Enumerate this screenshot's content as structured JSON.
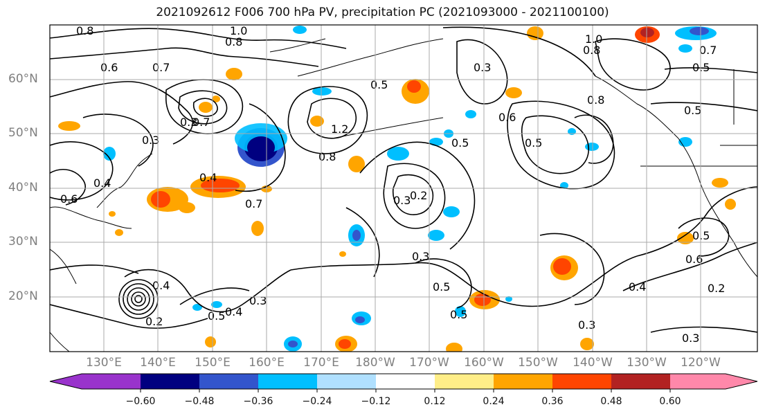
{
  "title": "2021092612 F006 700 hPa PV, precipitation PC (2021093000 - 2021100100)",
  "lat_labels": [
    "60°N",
    "50°N",
    "40°N",
    "30°N",
    "20°N"
  ],
  "lon_labels": [
    "130°E",
    "140°E",
    "150°E",
    "160°E",
    "170°E",
    "180°W",
    "170°W",
    "160°W",
    "150°W",
    "140°W",
    "130°W",
    "120°W"
  ],
  "colorbar": {
    "colors": [
      "#9933cc",
      "#000080",
      "#3355cc",
      "#00bfff",
      "#b0e0ff",
      "#ffffff",
      "#ffee88",
      "#ffa500",
      "#ff4500",
      "#b22222",
      "#ff88aa"
    ],
    "tick_labels": [
      "−0.60",
      "−0.48",
      "−0.36",
      "−0.24",
      "−0.12",
      "0.12",
      "0.24",
      "0.36",
      "0.48",
      "0.60"
    ]
  },
  "contour_labels": [
    "0.8",
    "1.0",
    "0.8",
    "0.6",
    "0.7",
    "0.5",
    "0.3",
    "0.6",
    "0.4",
    "0.3",
    "0.7",
    "1.2",
    "0.8",
    "0.5",
    "0.5",
    "0.3",
    "0.2",
    "0.7",
    "0.4",
    "0.6",
    "0.4",
    "0.3",
    "0.5",
    "0.4",
    "0.3",
    "0.2",
    "0.5",
    "0.3",
    "0.5",
    "0.6",
    "0.5",
    "0.4",
    "0.2",
    "0.3",
    "1.0",
    "0.8",
    "0.7",
    "0.5",
    "0.5",
    "0.8",
    "0.3"
  ]
}
